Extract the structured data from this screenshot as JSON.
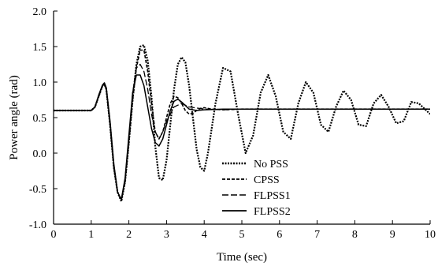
{
  "chart_data": {
    "type": "line",
    "title": "",
    "xlabel": "Time (sec)",
    "ylabel": "Power angle (rad)",
    "xlim": [
      0,
      10
    ],
    "ylim": [
      -1.0,
      2.0
    ],
    "x_ticks": [
      0,
      1,
      2,
      3,
      4,
      5,
      6,
      7,
      8,
      9,
      10
    ],
    "x_tick_labels": [
      "0",
      "1",
      "2",
      "3",
      "4",
      "5",
      "6",
      "7",
      "8",
      "9",
      "10"
    ],
    "y_ticks": [
      -1.0,
      -0.5,
      0.0,
      0.5,
      1.0,
      1.5,
      2.0
    ],
    "y_tick_labels": [
      "-1.0",
      "-0.5",
      "0.0",
      "0.5",
      "1.0",
      "1.5",
      "2.0"
    ],
    "grid": false,
    "legend_position": "bottom-center",
    "series": [
      {
        "name": "No PSS",
        "style": "dotted",
        "x": [
          0,
          1.0,
          1.1,
          1.2,
          1.3,
          1.35,
          1.4,
          1.5,
          1.6,
          1.7,
          1.8,
          1.9,
          2.0,
          2.1,
          2.2,
          2.3,
          2.4,
          2.5,
          2.6,
          2.7,
          2.8,
          2.9,
          3.0,
          3.1,
          3.2,
          3.3,
          3.4,
          3.5,
          3.6,
          3.7,
          3.8,
          3.9,
          4.0,
          4.1,
          4.3,
          4.5,
          4.7,
          4.9,
          5.1,
          5.3,
          5.5,
          5.7,
          5.9,
          6.1,
          6.3,
          6.5,
          6.7,
          6.9,
          7.1,
          7.3,
          7.5,
          7.7,
          7.9,
          8.1,
          8.3,
          8.5,
          8.7,
          8.9,
          9.1,
          9.3,
          9.5,
          9.7,
          10.0
        ],
        "y": [
          0.6,
          0.6,
          0.65,
          0.8,
          0.95,
          0.97,
          0.9,
          0.4,
          -0.2,
          -0.55,
          -0.68,
          -0.4,
          0.15,
          0.75,
          1.25,
          1.5,
          1.52,
          1.3,
          0.8,
          0.1,
          -0.35,
          -0.38,
          -0.1,
          0.4,
          0.9,
          1.25,
          1.35,
          1.28,
          0.95,
          0.5,
          0.05,
          -0.2,
          -0.25,
          0.0,
          0.7,
          1.2,
          1.15,
          0.55,
          0.0,
          0.25,
          0.85,
          1.1,
          0.8,
          0.3,
          0.2,
          0.7,
          1.0,
          0.85,
          0.4,
          0.3,
          0.65,
          0.88,
          0.75,
          0.4,
          0.38,
          0.7,
          0.82,
          0.65,
          0.42,
          0.45,
          0.72,
          0.7,
          0.55
        ]
      },
      {
        "name": "CPSS",
        "style": "short-dash",
        "x": [
          0,
          1.0,
          1.1,
          1.2,
          1.3,
          1.35,
          1.4,
          1.5,
          1.6,
          1.7,
          1.8,
          1.9,
          2.0,
          2.1,
          2.2,
          2.3,
          2.4,
          2.5,
          2.6,
          2.7,
          2.8,
          2.9,
          3.0,
          3.1,
          3.2,
          3.3,
          3.4,
          3.5,
          3.6,
          3.7,
          3.8,
          3.9,
          4.0,
          4.2,
          4.5,
          5.0,
          6.0,
          8.0,
          10.0
        ],
        "y": [
          0.6,
          0.6,
          0.65,
          0.8,
          0.95,
          0.97,
          0.9,
          0.4,
          -0.2,
          -0.55,
          -0.66,
          -0.4,
          0.15,
          0.75,
          1.2,
          1.45,
          1.45,
          1.15,
          0.7,
          0.3,
          0.2,
          0.3,
          0.5,
          0.7,
          0.8,
          0.78,
          0.7,
          0.6,
          0.55,
          0.56,
          0.6,
          0.63,
          0.64,
          0.62,
          0.61,
          0.62,
          0.62,
          0.62,
          0.62
        ]
      },
      {
        "name": "FLPSS1",
        "style": "long-dash",
        "x": [
          0,
          1.0,
          1.1,
          1.2,
          1.3,
          1.35,
          1.4,
          1.5,
          1.6,
          1.7,
          1.8,
          1.9,
          2.0,
          2.1,
          2.2,
          2.3,
          2.4,
          2.5,
          2.6,
          2.7,
          2.8,
          2.9,
          3.0,
          3.2,
          3.4,
          3.6,
          4.0,
          4.5,
          5.0,
          6.0,
          7.0,
          8.0,
          10.0
        ],
        "y": [
          0.6,
          0.6,
          0.65,
          0.8,
          0.95,
          0.97,
          0.9,
          0.4,
          -0.2,
          -0.55,
          -0.65,
          -0.38,
          0.2,
          0.85,
          1.2,
          1.25,
          1.15,
          0.9,
          0.55,
          0.3,
          0.2,
          0.3,
          0.45,
          0.65,
          0.7,
          0.65,
          0.62,
          0.61,
          0.62,
          0.62,
          0.62,
          0.62,
          0.62
        ]
      },
      {
        "name": "FLPSS2",
        "style": "solid",
        "x": [
          0,
          1.0,
          1.1,
          1.2,
          1.3,
          1.35,
          1.4,
          1.5,
          1.6,
          1.7,
          1.8,
          1.9,
          2.0,
          2.1,
          2.2,
          2.3,
          2.4,
          2.5,
          2.6,
          2.7,
          2.8,
          2.9,
          3.0,
          3.1,
          3.2,
          3.3,
          3.4,
          3.6,
          3.8,
          4.0,
          4.5,
          5.0,
          6.0,
          8.0,
          10.0
        ],
        "y": [
          0.6,
          0.6,
          0.65,
          0.82,
          0.96,
          0.99,
          0.92,
          0.45,
          -0.15,
          -0.55,
          -0.65,
          -0.35,
          0.25,
          0.85,
          1.1,
          1.1,
          0.95,
          0.65,
          0.35,
          0.15,
          0.1,
          0.2,
          0.4,
          0.6,
          0.73,
          0.76,
          0.72,
          0.62,
          0.6,
          0.61,
          0.62,
          0.62,
          0.62,
          0.62,
          0.62
        ]
      }
    ]
  }
}
